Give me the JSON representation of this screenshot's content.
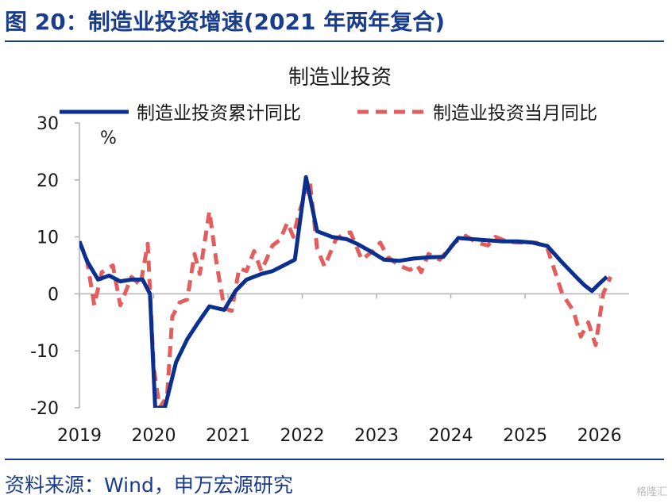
{
  "figure": {
    "title": "图 20：制造业投资增速(2021 年两年复合)",
    "source": "资料来源：Wind，申万宏源研究",
    "watermark": "格隆汇"
  },
  "colors": {
    "accent": "#1a3c8c",
    "series_cumulative": "#0b2f8f",
    "series_monthly": "#e35d5d",
    "axis": "#b0b0b0",
    "text": "#1a1a1a"
  },
  "chart_data": {
    "type": "line",
    "title": "制造业投资",
    "unit_label": "%",
    "ylim": [
      -20,
      30
    ],
    "yticks": [
      "30",
      "20",
      "10",
      "0",
      "-10",
      "-20"
    ],
    "xlim": [
      2019.0,
      2026.4
    ],
    "xticks": [
      {
        "label": "2019",
        "value": 2019.0
      },
      {
        "label": "2020",
        "value": 2020.0
      },
      {
        "label": "2021",
        "value": 2021.0
      },
      {
        "label": "2022",
        "value": 2022.0
      },
      {
        "label": "2023",
        "value": 2023.0
      },
      {
        "label": "2024",
        "value": 2024.0
      },
      {
        "label": "2025",
        "value": 2025.0
      },
      {
        "label": "2026",
        "value": 2026.0
      }
    ],
    "grid": false,
    "legend_position": "top",
    "series": [
      {
        "name": "制造业投资累计同比",
        "style": "solid",
        "points": [
          [
            2019.0,
            9.2
          ],
          [
            2019.1,
            5.8
          ],
          [
            2019.25,
            2.5
          ],
          [
            2019.4,
            3.2
          ],
          [
            2019.55,
            2.2
          ],
          [
            2019.7,
            2.5
          ],
          [
            2019.85,
            2.5
          ],
          [
            2019.95,
            0.0
          ],
          [
            2020.02,
            -20.0
          ],
          [
            2020.15,
            -20.0
          ],
          [
            2020.3,
            -12.0
          ],
          [
            2020.45,
            -8.0
          ],
          [
            2020.6,
            -5.0
          ],
          [
            2020.75,
            -2.2
          ],
          [
            2020.85,
            -2.5
          ],
          [
            2020.95,
            -2.8
          ],
          [
            2021.1,
            0.5
          ],
          [
            2021.25,
            2.5
          ],
          [
            2021.45,
            3.5
          ],
          [
            2021.6,
            4.0
          ],
          [
            2021.75,
            5.0
          ],
          [
            2021.9,
            6.0
          ],
          [
            2022.05,
            20.5
          ],
          [
            2022.2,
            11.0
          ],
          [
            2022.4,
            10.0
          ],
          [
            2022.6,
            9.6
          ],
          [
            2022.75,
            8.7
          ],
          [
            2022.9,
            7.6
          ],
          [
            2023.1,
            6.0
          ],
          [
            2023.3,
            5.8
          ],
          [
            2023.5,
            6.2
          ],
          [
            2023.7,
            6.4
          ],
          [
            2023.9,
            6.5
          ],
          [
            2024.1,
            9.8
          ],
          [
            2024.3,
            9.6
          ],
          [
            2024.5,
            9.4
          ],
          [
            2024.7,
            9.2
          ],
          [
            2024.9,
            9.2
          ],
          [
            2025.1,
            9.0
          ],
          [
            2025.3,
            8.4
          ],
          [
            2025.5,
            5.5
          ],
          [
            2025.7,
            2.8
          ],
          [
            2025.8,
            1.5
          ],
          [
            2025.9,
            0.5
          ],
          [
            2026.0,
            1.8
          ],
          [
            2026.1,
            3.0
          ]
        ]
      },
      {
        "name": "制造业投资当月同比",
        "style": "dashed",
        "points": [
          [
            2019.0,
            9.2
          ],
          [
            2019.1,
            6.0
          ],
          [
            2019.2,
            -2.0
          ],
          [
            2019.3,
            3.8
          ],
          [
            2019.45,
            5.0
          ],
          [
            2019.55,
            -2.0
          ],
          [
            2019.7,
            3.0
          ],
          [
            2019.82,
            1.5
          ],
          [
            2019.92,
            8.8
          ],
          [
            2020.0,
            -13.0
          ],
          [
            2020.08,
            -20.0
          ],
          [
            2020.18,
            -18.0
          ],
          [
            2020.25,
            -4.0
          ],
          [
            2020.35,
            -1.5
          ],
          [
            2020.45,
            -1.0
          ],
          [
            2020.55,
            7.0
          ],
          [
            2020.62,
            3.5
          ],
          [
            2020.75,
            14.5
          ],
          [
            2020.85,
            5.0
          ],
          [
            2020.95,
            -2.5
          ],
          [
            2021.05,
            -3.0
          ],
          [
            2021.15,
            4.5
          ],
          [
            2021.25,
            4.0
          ],
          [
            2021.35,
            7.5
          ],
          [
            2021.45,
            4.0
          ],
          [
            2021.6,
            8.5
          ],
          [
            2021.7,
            9.5
          ],
          [
            2021.8,
            12.5
          ],
          [
            2021.88,
            10.0
          ],
          [
            2021.95,
            14.0
          ],
          [
            2022.1,
            20.0
          ],
          [
            2022.2,
            8.0
          ],
          [
            2022.3,
            4.8
          ],
          [
            2022.45,
            9.5
          ],
          [
            2022.55,
            10.5
          ],
          [
            2022.65,
            10.8
          ],
          [
            2022.8,
            6.0
          ],
          [
            2022.95,
            7.5
          ],
          [
            2023.05,
            9.0
          ],
          [
            2023.15,
            6.5
          ],
          [
            2023.3,
            5.0
          ],
          [
            2023.45,
            4.2
          ],
          [
            2023.55,
            5.0
          ],
          [
            2023.6,
            3.8
          ],
          [
            2023.7,
            7.0
          ],
          [
            2023.85,
            6.0
          ],
          [
            2023.95,
            7.5
          ],
          [
            2024.05,
            9.0
          ],
          [
            2024.2,
            10.2
          ],
          [
            2024.35,
            9.0
          ],
          [
            2024.5,
            8.5
          ],
          [
            2024.6,
            10.0
          ],
          [
            2024.75,
            9.2
          ],
          [
            2024.9,
            9.0
          ],
          [
            2025.0,
            9.0
          ],
          [
            2025.15,
            9.0
          ],
          [
            2025.3,
            8.0
          ],
          [
            2025.5,
            0.0
          ],
          [
            2025.65,
            -3.0
          ],
          [
            2025.75,
            -7.5
          ],
          [
            2025.85,
            -5.0
          ],
          [
            2025.95,
            -9.0
          ],
          [
            2026.05,
            0.0
          ],
          [
            2026.15,
            3.0
          ]
        ]
      }
    ]
  }
}
